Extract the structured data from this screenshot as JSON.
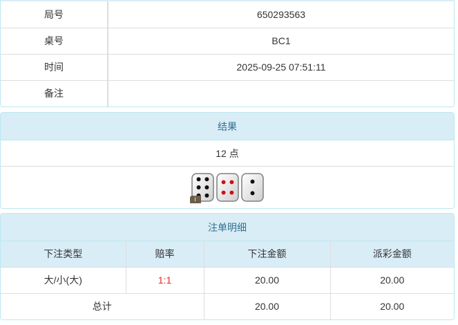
{
  "info": {
    "rows": [
      {
        "label": "局号",
        "value": "650293563"
      },
      {
        "label": "桌号",
        "value": "BC1"
      },
      {
        "label": "时间",
        "value": "2025-09-25 07:51:11"
      },
      {
        "label": "备注",
        "value": ""
      }
    ]
  },
  "result": {
    "title": "结果",
    "points": "12 点",
    "dice": [
      6,
      4,
      2
    ],
    "info_badge": "i",
    "pip_colors": {
      "black": "#111111",
      "red": "#cc1111"
    }
  },
  "bets": {
    "title": "注单明细",
    "columns": [
      "下注类型",
      "赔率",
      "下注金额",
      "派彩金额"
    ],
    "rows": [
      {
        "type": "大/小(大)",
        "odds": "1:1",
        "amount": "20.00",
        "payout": "20.00"
      }
    ],
    "total": {
      "label": "总计",
      "amount": "20.00",
      "payout": "20.00"
    }
  },
  "colors": {
    "header_bg": "#d9edf7",
    "header_text": "#31708f",
    "odds": "#e4262d"
  }
}
